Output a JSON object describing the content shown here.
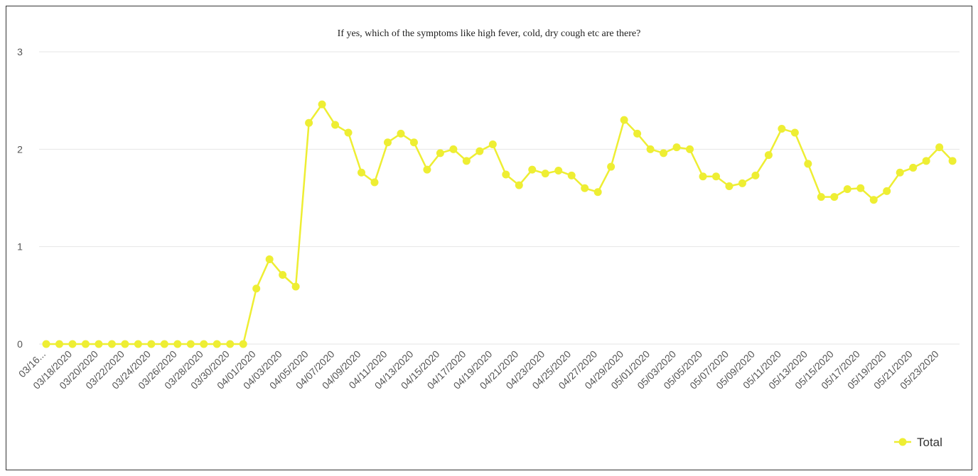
{
  "chart_data": {
    "type": "line",
    "title": "If yes, which of the symptoms like high fever, cold, dry cough etc are there?",
    "categories": [
      "03/16...",
      null,
      "03/18/2020",
      null,
      "03/20/2020",
      null,
      "03/22/2020",
      null,
      "03/24/2020",
      null,
      "03/26/2020",
      null,
      "03/28/2020",
      null,
      "03/30/2020",
      null,
      "04/01/2020",
      null,
      "04/03/2020",
      null,
      "04/05/2020",
      null,
      "04/07/2020",
      null,
      "04/09/2020",
      null,
      "04/11/2020",
      null,
      "04/13/2020",
      null,
      "04/15/2020",
      null,
      "04/17/2020",
      null,
      "04/19/2020",
      null,
      "04/21/2020",
      null,
      "04/23/2020",
      null,
      "04/25/2020",
      null,
      "04/27/2020",
      null,
      "04/29/2020",
      null,
      "05/01/2020",
      null,
      "05/03/2020",
      null,
      "05/05/2020",
      null,
      "05/07/2020",
      null,
      "05/09/2020",
      null,
      "05/11/2020",
      null,
      "05/13/2020",
      null,
      "05/15/2020",
      null,
      "05/17/2020",
      null,
      "05/19/2020",
      null,
      "05/21/2020",
      null,
      "05/23/2020",
      null
    ],
    "series": [
      {
        "name": "Total",
        "color": "#eeee33",
        "values": [
          0,
          0,
          0,
          0,
          0,
          0,
          0,
          0,
          0,
          0,
          0,
          0,
          0,
          0,
          0,
          0,
          0.57,
          0.87,
          0.71,
          0.59,
          2.27,
          2.46,
          2.25,
          2.17,
          1.76,
          1.66,
          2.07,
          2.16,
          2.07,
          1.79,
          1.96,
          2.0,
          1.88,
          1.98,
          2.05,
          1.74,
          1.63,
          1.79,
          1.75,
          1.78,
          1.73,
          1.6,
          1.56,
          1.82,
          2.3,
          2.16,
          2.0,
          1.96,
          2.02,
          2.0,
          1.72,
          1.72,
          1.62,
          1.65,
          1.73,
          1.94,
          2.21,
          2.17,
          1.85,
          1.51,
          1.51,
          1.59,
          1.6,
          1.48,
          1.57,
          1.76,
          1.81,
          1.88,
          2.02,
          1.88
        ]
      }
    ],
    "ylim": [
      0,
      3
    ],
    "yticks": [
      0,
      1,
      2,
      3
    ],
    "grid": true,
    "legend": "bottom-right"
  }
}
